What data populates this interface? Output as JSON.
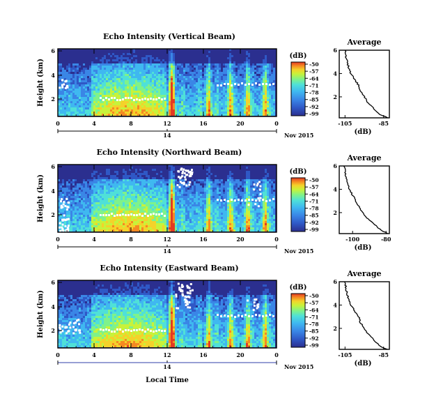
{
  "chart_data": {
    "type": "heatmap",
    "colormap": [
      "#2b2f8f",
      "#2f58c6",
      "#3a86e6",
      "#3fb8f0",
      "#4fe0d8",
      "#7ff28a",
      "#c8f23a",
      "#f4d22a",
      "#f58a22",
      "#e33a22"
    ],
    "date_label": "Nov 2015",
    "xlabel_bottom": "Local Time",
    "panels": [
      {
        "title": "Echo Intensity (Vertical Beam)",
        "ylabel": "Height (km)",
        "yticks": [
          "6",
          "4",
          "2"
        ],
        "xticks": [
          "0",
          "4",
          "8",
          "12",
          "16",
          "20",
          "0"
        ],
        "day_label": "14",
        "colorbar_unit": "(dB)",
        "colorbar_ticks": [
          "-50",
          "-57",
          "-64",
          "-71",
          "-78",
          "-85",
          "-92",
          "-99"
        ],
        "profile": {
          "title": "Average",
          "xlabel": "(dB)",
          "xticks": [
            "-105",
            "-85"
          ],
          "yticks": [
            "6",
            "4",
            "2"
          ],
          "xlim": [
            -108,
            -82
          ],
          "ylim": [
            0.2,
            6
          ],
          "height": [
            0.2,
            0.5,
            1.0,
            1.5,
            2.0,
            2.5,
            3.0,
            3.5,
            4.0,
            4.5,
            5.0,
            5.5,
            6.0
          ],
          "value": [
            -83,
            -87,
            -90,
            -93,
            -95,
            -97,
            -98,
            -100,
            -102,
            -103,
            -104,
            -104.5,
            -105
          ]
        }
      },
      {
        "title": "Echo Intensity (Northward Beam)",
        "ylabel": "Height (km)",
        "yticks": [
          "6",
          "4",
          "2"
        ],
        "xticks": [
          "0",
          "4",
          "8",
          "12",
          "16",
          "20",
          "0"
        ],
        "day_label": "14",
        "colorbar_unit": "(dB)",
        "colorbar_ticks": [
          "-50",
          "-57",
          "-64",
          "-71",
          "-78",
          "-85",
          "-92",
          "-99"
        ],
        "profile": {
          "title": "Average",
          "xlabel": "(dB)",
          "xticks": [
            "-100",
            "-80"
          ],
          "yticks": [
            "6",
            "4",
            "2"
          ],
          "xlim": [
            -108,
            -78
          ],
          "ylim": [
            0.2,
            6
          ],
          "height": [
            0.2,
            0.5,
            1.0,
            1.5,
            2.0,
            2.5,
            3.0,
            3.5,
            4.0,
            4.5,
            5.0,
            5.5,
            6.0
          ],
          "value": [
            -79,
            -83,
            -87,
            -91,
            -94,
            -96,
            -98,
            -100,
            -102,
            -103,
            -104,
            -104.5,
            -105
          ]
        }
      },
      {
        "title": "Echo Intensity (Eastward Beam)",
        "ylabel": "Height (km)",
        "yticks": [
          "6",
          "4",
          "2"
        ],
        "xticks": [
          "0",
          "4",
          "8",
          "12",
          "16",
          "20",
          "0"
        ],
        "day_label": "14",
        "colorbar_unit": "(dB)",
        "colorbar_ticks": [
          "-50",
          "-57",
          "-64",
          "-71",
          "-78",
          "-85",
          "-92",
          "-99"
        ],
        "profile": {
          "title": "Average",
          "xlabel": "(dB)",
          "xticks": [
            "-105",
            "-85"
          ],
          "yticks": [
            "6",
            "4",
            "2"
          ],
          "xlim": [
            -108,
            -82
          ],
          "ylim": [
            0.2,
            6
          ],
          "height": [
            0.2,
            0.5,
            1.0,
            1.5,
            2.0,
            2.5,
            3.0,
            3.5,
            4.0,
            4.5,
            5.0,
            5.5,
            6.0
          ],
          "value": [
            -83,
            -87,
            -90,
            -93,
            -95,
            -97,
            -98,
            -100,
            -102,
            -103,
            -104,
            -104.5,
            -105
          ]
        }
      }
    ]
  }
}
